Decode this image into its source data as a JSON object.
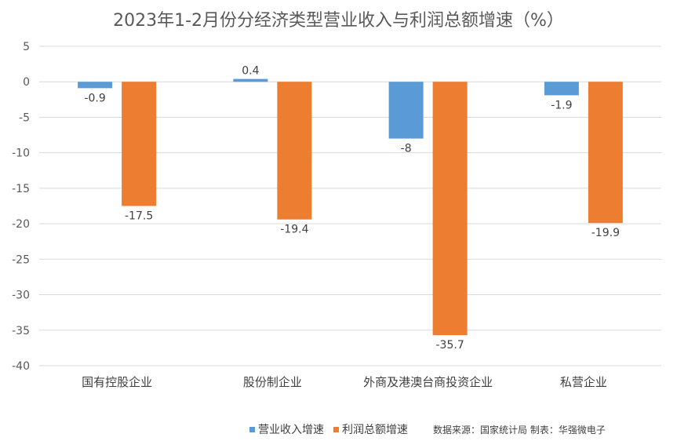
{
  "chart_data": {
    "type": "bar",
    "title": "2023年1-2月份分经济类型营业收入与利润总额增速（%）",
    "categories": [
      "国有控股企业",
      "股份制企业",
      "外商及港澳台商投资企业",
      "私营企业"
    ],
    "series": [
      {
        "name": "营业收入增速",
        "color": "#5B9BD5",
        "values": [
          -0.9,
          0.4,
          -8,
          -1.9
        ],
        "labels": [
          "-0.9",
          "0.4",
          "-8",
          "-1.9"
        ]
      },
      {
        "name": "利润总额增速",
        "color": "#ED7D31",
        "values": [
          -17.5,
          -19.4,
          -35.7,
          -19.9
        ],
        "labels": [
          "-17.5",
          "-19.4",
          "-35.7",
          "-19.9"
        ]
      }
    ],
    "ylim": [
      -40,
      5
    ],
    "yticks": [
      5,
      0,
      -5,
      -10,
      -15,
      -20,
      -25,
      -30,
      -35,
      -40
    ],
    "grid": true,
    "legend_position": "bottom",
    "xlabel": "",
    "ylabel": ""
  },
  "source_note": "数据来源：国家统计局   制表：华强微电子"
}
